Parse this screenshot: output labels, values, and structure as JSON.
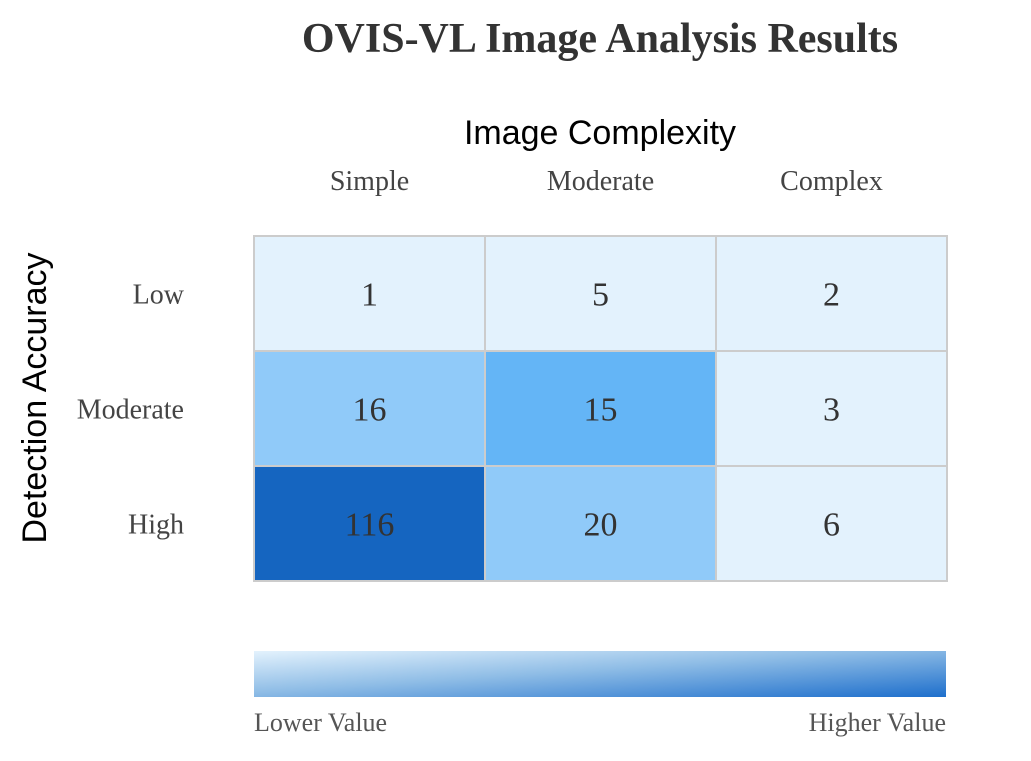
{
  "chart_data": {
    "type": "heatmap",
    "title": "OVIS-VL Image Analysis Results",
    "xlabel": "Image Complexity",
    "ylabel": "Detection Accuracy",
    "x_categories": [
      "Simple",
      "Moderate",
      "Complex"
    ],
    "y_categories": [
      "Low",
      "Moderate",
      "High"
    ],
    "values": [
      [
        1,
        5,
        2
      ],
      [
        16,
        15,
        3
      ],
      [
        116,
        20,
        6
      ]
    ],
    "legend": {
      "low_label": "Lower Value",
      "high_label": "Higher Value",
      "placement": "bottom"
    },
    "colors": {
      "lowest": "#e3f2fd",
      "low": "#90caf9",
      "mid": "#64b5f6",
      "high": "#1565c0",
      "cell_border": "#cccccc"
    }
  }
}
